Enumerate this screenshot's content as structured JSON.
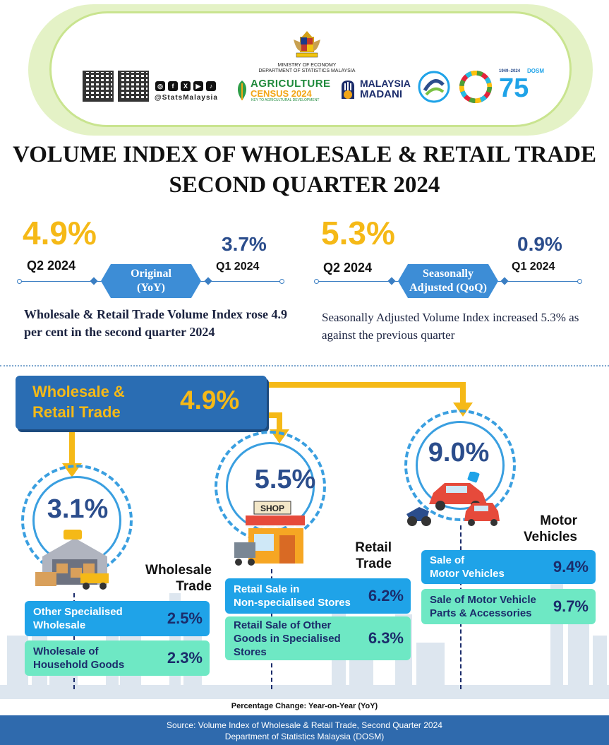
{
  "header": {
    "ministry": "MINISTRY OF ECONOMY",
    "department": "DEPARTMENT OF STATISTICS MALAYSIA",
    "social_handle": "@StatsMalaysia",
    "social_icons": [
      "instagram-icon",
      "facebook-icon",
      "x-icon",
      "youtube-icon",
      "tiktok-icon"
    ],
    "agri_line1": "AGRICULTURE",
    "agri_line2": "CENSUS 2024",
    "agri_line3": "KEY TO AGRICULTURAL DEVELOPMENT",
    "madani_line1": "MALAYSIA",
    "madani_line2": "MADANI",
    "dosm_years": "1949–2024",
    "dosm_abbr": "DOSM",
    "dosm_number": "75"
  },
  "title": {
    "line1": "VOLUME INDEX OF WHOLESALE & RETAIL TRADE",
    "line2": "SECOND QUARTER 2024"
  },
  "original": {
    "current_pct": "4.9%",
    "current_label": "Q2 2024",
    "prev_pct": "3.7%",
    "prev_label": "Q1 2024",
    "badge_line1": "Original",
    "badge_line2": "(YoY)",
    "description": "Wholesale & Retail Trade Volume Index rose 4.9 per cent in the second quarter 2024"
  },
  "seasonal": {
    "current_pct": "5.3%",
    "current_label": "Q2 2024",
    "prev_pct": "0.9%",
    "prev_label": "Q1 2024",
    "badge_line1": "Seasonally",
    "badge_line2": "Adjusted (QoQ)",
    "description": "Seasonally Adjusted Volume Index increased 5.3% as against the previous quarter"
  },
  "total": {
    "label_line1": "Wholesale &",
    "label_line2": "Retail Trade",
    "pct": "4.9%"
  },
  "wholesale": {
    "pct": "3.1%",
    "name_line1": "Wholesale",
    "name_line2": "Trade",
    "items": [
      {
        "label_line1": "Other Specialised",
        "label_line2": "Wholesale",
        "pct": "2.5%"
      },
      {
        "label_line1": "Wholesale of",
        "label_line2": "Household Goods",
        "pct": "2.3%"
      }
    ]
  },
  "retail": {
    "pct": "5.5%",
    "name_line1": "Retail",
    "name_line2": "Trade",
    "shop_sign": "SHOP",
    "items": [
      {
        "label_line1": "Retail Sale in",
        "label_line2": "Non-specialised Stores",
        "pct": "6.2%"
      },
      {
        "label_line1": "Retail Sale of Other",
        "label_line2": "Goods in Specialised",
        "label_line3": "Stores",
        "pct": "6.3%"
      }
    ]
  },
  "motor": {
    "pct": "9.0%",
    "name_line1": "Motor",
    "name_line2": "Vehicles",
    "items": [
      {
        "label_line1": "Sale of",
        "label_line2": "Motor Vehicles",
        "pct": "9.4%"
      },
      {
        "label_line1": "Sale of Motor Vehicle",
        "label_line2": "Parts & Accessories",
        "pct": "9.7%"
      }
    ]
  },
  "footnote": "Percentage Change: Year-on-Year (YoY)",
  "footer": {
    "line1": "Source: Volume Index of Wholesale & Retail Trade, Second Quarter 2024",
    "line2": "Department of Statistics Malaysia (DOSM)"
  },
  "colors": {
    "accent_yellow": "#f5b917",
    "navy": "#2b4d8c",
    "blue_card": "#1fa3e8",
    "green_card": "#6ee8c4",
    "banner_green": "#c9e48f"
  }
}
